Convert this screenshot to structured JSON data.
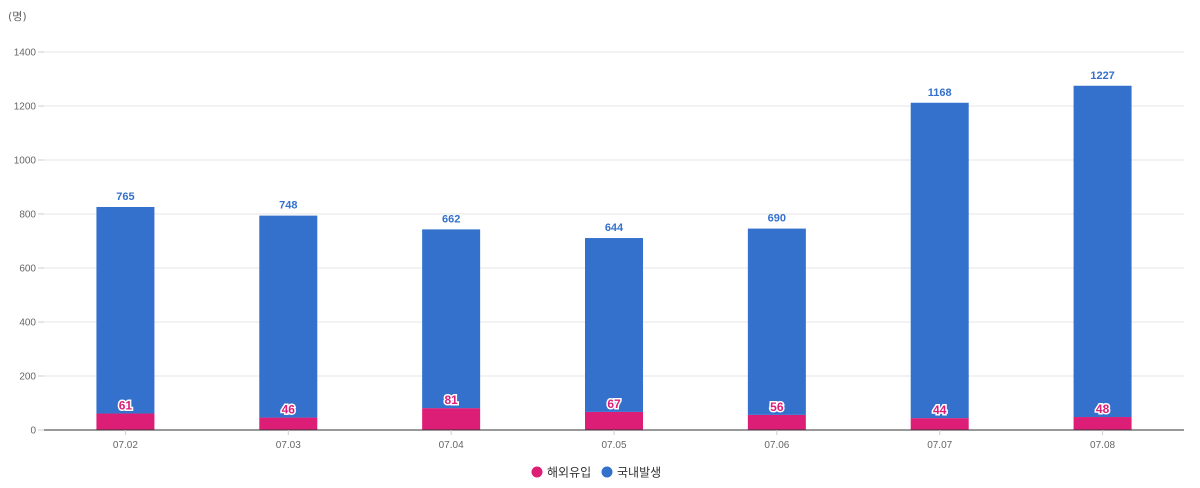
{
  "unit_label": "(명)",
  "colors": {
    "overseas": "#dd1e76",
    "domestic": "#3471cc",
    "grid": "#e6e6e6",
    "axis": "#333333"
  },
  "legend": [
    {
      "name": "해외유입",
      "color": "#dd1e76"
    },
    {
      "name": "국내발생",
      "color": "#3471cc"
    }
  ],
  "chart_data": {
    "type": "bar",
    "stacked": true,
    "categories": [
      "07.02",
      "07.03",
      "07.04",
      "07.05",
      "07.06",
      "07.07",
      "07.08"
    ],
    "series": [
      {
        "name": "해외유입",
        "values": [
          61,
          46,
          81,
          67,
          56,
          44,
          48
        ]
      },
      {
        "name": "국내발생",
        "values": [
          765,
          748,
          662,
          644,
          690,
          1168,
          1227
        ]
      }
    ],
    "ylim": [
      0,
      1400
    ],
    "yticks": [
      0,
      200,
      400,
      600,
      800,
      1000,
      1200,
      1400
    ],
    "grid": true,
    "legend_position": "bottom"
  }
}
